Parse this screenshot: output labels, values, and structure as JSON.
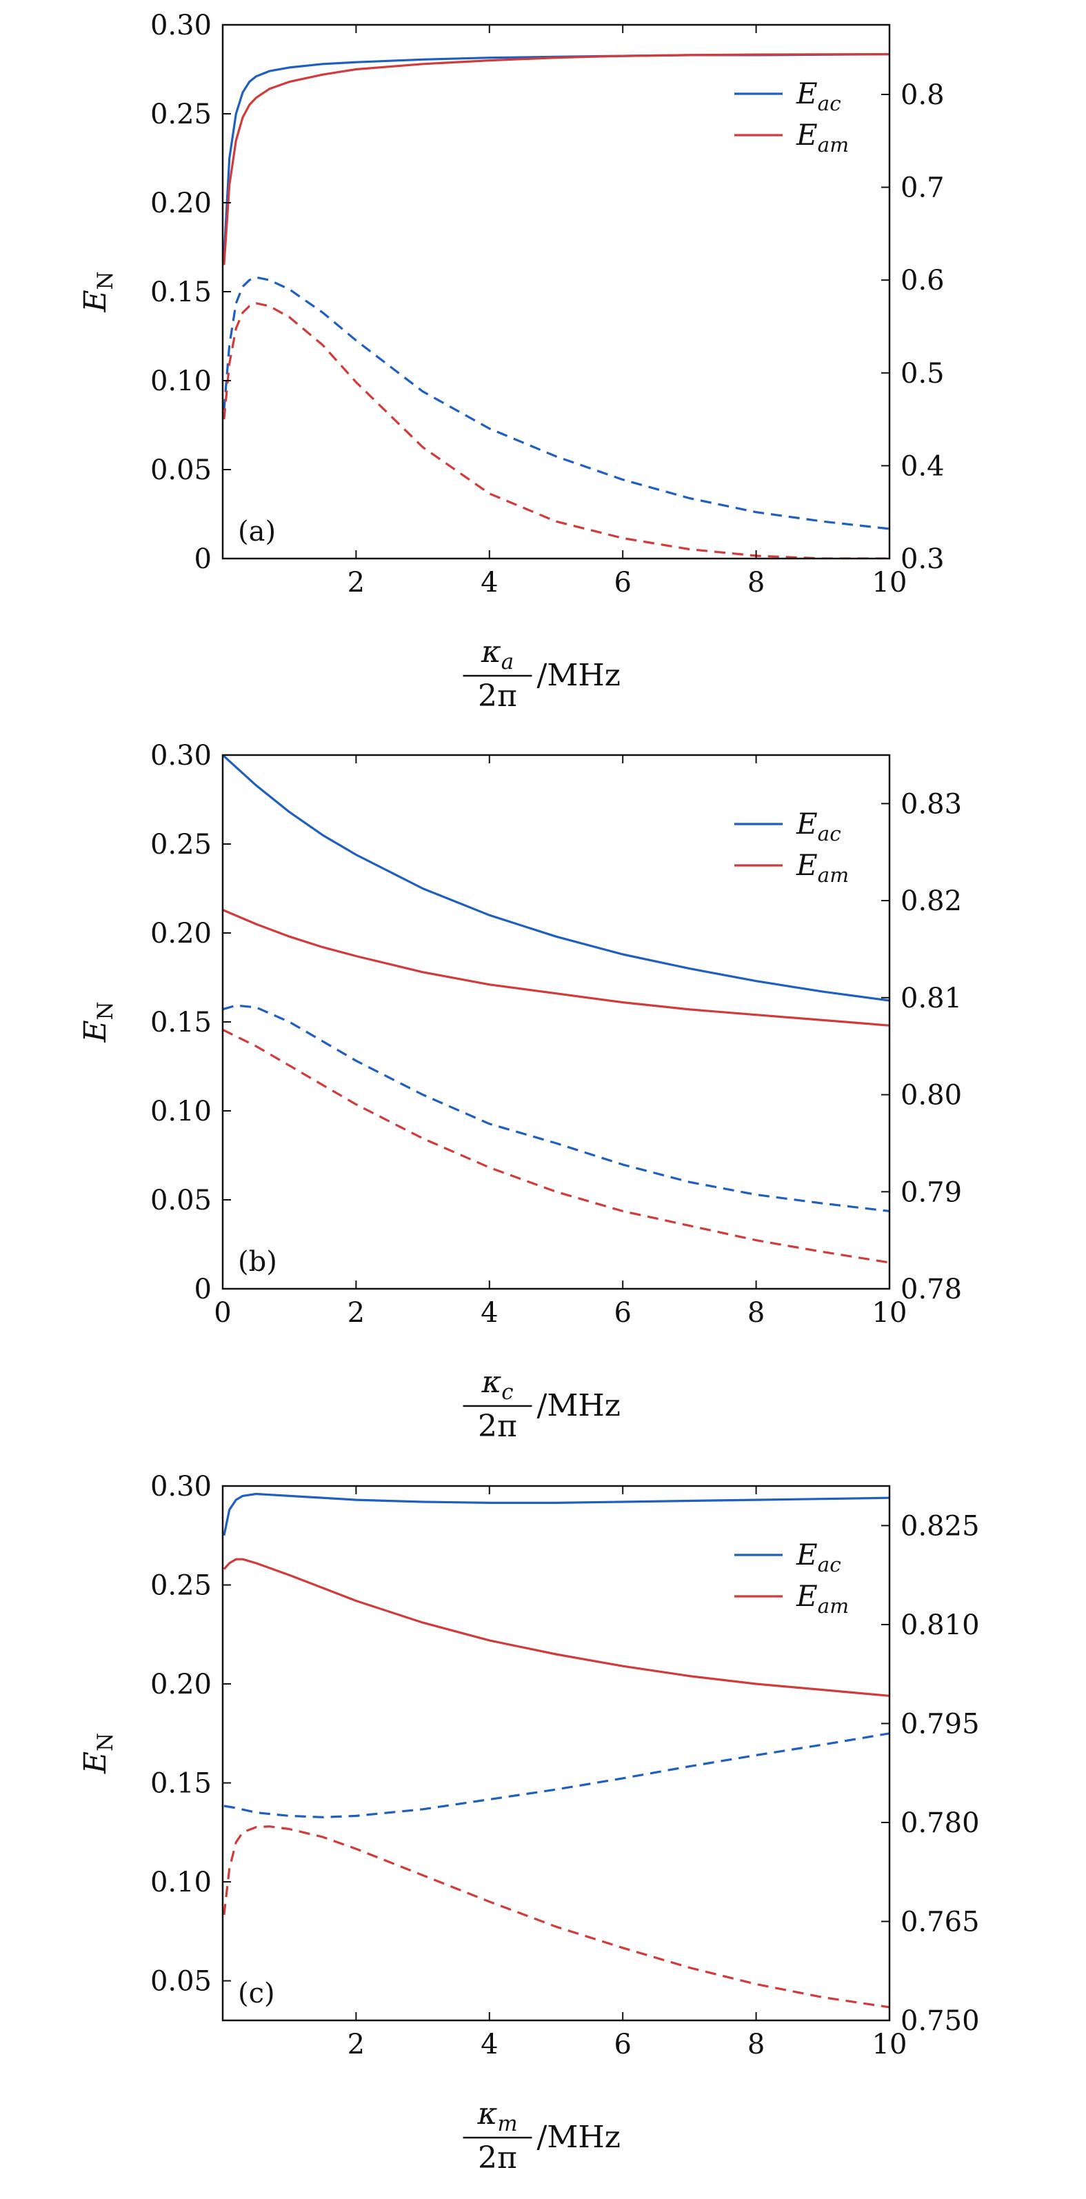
{
  "chart_data": [
    {
      "type": "line",
      "panel": "(a)",
      "xlabel": "κ_a / 2π /MHz",
      "xlabel_parts": {
        "symbol": "κ",
        "sub": "a",
        "den": "2π",
        "unit": "/MHz"
      },
      "ylabel_left": "E_N",
      "ylabel_parts": {
        "symbol": "E",
        "sub": "N"
      },
      "xlim": [
        0,
        10
      ],
      "xticks": [
        2,
        4,
        6,
        8,
        10
      ],
      "ylim_left": [
        0,
        0.3
      ],
      "yticks_left": [
        "0",
        "0.05",
        "0.10",
        "0.15",
        "0.20",
        "0.25",
        "0.30"
      ],
      "ylim_right": [
        0.3,
        0.875
      ],
      "yticks_right": [
        "0.3",
        "0.4",
        "0.5",
        "0.6",
        "0.7",
        "0.8"
      ],
      "legend": [
        {
          "symbol": "E",
          "sub": "ac",
          "color": "#1f5fbf"
        },
        {
          "symbol": "E",
          "sub": "am",
          "color": "#d13b3b"
        }
      ],
      "legend_position": "upper-right",
      "series": [
        {
          "name": "E_ac",
          "axis": "left",
          "style": "solid",
          "color": "#1f5fbf",
          "x": [
            0.02,
            0.1,
            0.2,
            0.3,
            0.4,
            0.5,
            0.7,
            1,
            1.5,
            2,
            3,
            4,
            5,
            6,
            7,
            8,
            9,
            10
          ],
          "y": [
            0.17,
            0.225,
            0.25,
            0.262,
            0.268,
            0.271,
            0.274,
            0.276,
            0.278,
            0.279,
            0.2805,
            0.2815,
            0.282,
            0.2825,
            0.283,
            0.283,
            0.2832,
            0.2835
          ]
        },
        {
          "name": "E_am",
          "axis": "left",
          "style": "solid",
          "color": "#d13b3b",
          "x": [
            0.02,
            0.1,
            0.2,
            0.3,
            0.4,
            0.5,
            0.7,
            1,
            1.5,
            2,
            3,
            4,
            5,
            6,
            7,
            8,
            9,
            10
          ],
          "y": [
            0.165,
            0.21,
            0.235,
            0.248,
            0.255,
            0.259,
            0.264,
            0.268,
            0.272,
            0.275,
            0.278,
            0.28,
            0.2815,
            0.2825,
            0.283,
            0.2833,
            0.2834,
            0.2835
          ]
        },
        {
          "name": "E_ac",
          "axis": "right",
          "style": "dashed",
          "color": "#1f5fbf",
          "x": [
            0.02,
            0.1,
            0.2,
            0.3,
            0.4,
            0.5,
            0.7,
            1,
            1.5,
            2,
            3,
            4,
            5,
            6,
            7,
            8,
            9,
            10
          ],
          "y": [
            0.46,
            0.53,
            0.575,
            0.593,
            0.6,
            0.603,
            0.6,
            0.59,
            0.565,
            0.535,
            0.48,
            0.44,
            0.41,
            0.385,
            0.365,
            0.35,
            0.34,
            0.332
          ]
        },
        {
          "name": "E_am",
          "axis": "right",
          "style": "dashed",
          "color": "#d13b3b",
          "x": [
            0.02,
            0.1,
            0.2,
            0.3,
            0.4,
            0.5,
            0.7,
            1,
            1.5,
            2,
            3,
            4,
            5,
            6,
            7,
            8,
            9,
            10
          ],
          "y": [
            0.45,
            0.51,
            0.548,
            0.565,
            0.572,
            0.575,
            0.572,
            0.56,
            0.53,
            0.49,
            0.42,
            0.37,
            0.34,
            0.322,
            0.31,
            0.303,
            0.3,
            0.3
          ]
        }
      ]
    },
    {
      "type": "line",
      "panel": "(b)",
      "xlabel": "κ_c / 2π /MHz",
      "xlabel_parts": {
        "symbol": "κ",
        "sub": "c",
        "den": "2π",
        "unit": "/MHz"
      },
      "ylabel_left": "E_N",
      "ylabel_parts": {
        "symbol": "E",
        "sub": "N"
      },
      "xlim": [
        0,
        10
      ],
      "xticks": [
        0,
        2,
        4,
        6,
        8,
        10
      ],
      "ylim_left": [
        0,
        0.3
      ],
      "yticks_left": [
        "0",
        "0.05",
        "0.10",
        "0.15",
        "0.20",
        "0.25",
        "0.30"
      ],
      "ylim_right": [
        0.78,
        0.835
      ],
      "yticks_right": [
        "0.78",
        "0.79",
        "0.80",
        "0.81",
        "0.82",
        "0.83"
      ],
      "legend": [
        {
          "symbol": "E",
          "sub": "ac",
          "color": "#1f5fbf"
        },
        {
          "symbol": "E",
          "sub": "am",
          "color": "#d13b3b"
        }
      ],
      "legend_position": "upper-right",
      "series": [
        {
          "name": "E_ac",
          "axis": "left",
          "style": "solid",
          "color": "#1f5fbf",
          "x": [
            0,
            0.5,
            1,
            1.5,
            2,
            3,
            4,
            5,
            6,
            7,
            8,
            9,
            10
          ],
          "y": [
            0.3,
            0.283,
            0.268,
            0.255,
            0.244,
            0.225,
            0.21,
            0.198,
            0.188,
            0.18,
            0.173,
            0.167,
            0.162
          ]
        },
        {
          "name": "E_am",
          "axis": "left",
          "style": "solid",
          "color": "#d13b3b",
          "x": [
            0,
            0.5,
            1,
            1.5,
            2,
            3,
            4,
            5,
            6,
            7,
            8,
            9,
            10
          ],
          "y": [
            0.213,
            0.205,
            0.198,
            0.192,
            0.187,
            0.178,
            0.171,
            0.166,
            0.161,
            0.157,
            0.154,
            0.151,
            0.148
          ]
        },
        {
          "name": "E_ac",
          "axis": "right",
          "style": "dashed",
          "color": "#1f5fbf",
          "x": [
            0,
            0.2,
            0.5,
            1,
            1.5,
            2,
            3,
            4,
            5,
            6,
            7,
            8,
            9,
            10
          ],
          "y": [
            0.8088,
            0.8092,
            0.809,
            0.8075,
            0.8055,
            0.8035,
            0.8,
            0.797,
            0.795,
            0.7928,
            0.791,
            0.7897,
            0.7888,
            0.788
          ]
        },
        {
          "name": "E_am",
          "axis": "right",
          "style": "dashed",
          "color": "#d13b3b",
          "x": [
            0,
            0.5,
            1,
            1.5,
            2,
            3,
            4,
            5,
            6,
            7,
            8,
            9,
            10
          ],
          "y": [
            0.8067,
            0.805,
            0.803,
            0.801,
            0.799,
            0.7955,
            0.7925,
            0.79,
            0.788,
            0.7865,
            0.785,
            0.7838,
            0.7827
          ]
        }
      ]
    },
    {
      "type": "line",
      "panel": "(c)",
      "xlabel": "κ_m / 2π /MHz",
      "xlabel_parts": {
        "symbol": "κ",
        "sub": "m",
        "den": "2π",
        "unit": "/MHz"
      },
      "ylabel_left": "E_N",
      "ylabel_parts": {
        "symbol": "E",
        "sub": "N"
      },
      "xlim": [
        0,
        10
      ],
      "xticks": [
        2,
        4,
        6,
        8,
        10
      ],
      "ylim_left": [
        0.03,
        0.3
      ],
      "yticks_left": [
        "0.05",
        "0.10",
        "0.15",
        "0.20",
        "0.25",
        "0.30"
      ],
      "ylim_right": [
        0.75,
        0.831
      ],
      "yticks_right": [
        "0.750",
        "0.765",
        "0.780",
        "0.795",
        "0.810",
        "0.825"
      ],
      "legend": [
        {
          "symbol": "E",
          "sub": "ac",
          "color": "#1f5fbf"
        },
        {
          "symbol": "E",
          "sub": "am",
          "color": "#d13b3b"
        }
      ],
      "legend_position": "upper-right",
      "series": [
        {
          "name": "E_ac",
          "axis": "left",
          "style": "solid",
          "color": "#1f5fbf",
          "x": [
            0.02,
            0.1,
            0.2,
            0.3,
            0.5,
            1,
            2,
            3,
            4,
            5,
            6,
            7,
            8,
            9,
            10
          ],
          "y": [
            0.275,
            0.288,
            0.293,
            0.295,
            0.296,
            0.295,
            0.293,
            0.292,
            0.2915,
            0.2915,
            0.292,
            0.2925,
            0.293,
            0.2935,
            0.294
          ]
        },
        {
          "name": "E_am",
          "axis": "left",
          "style": "solid",
          "color": "#d13b3b",
          "x": [
            0.02,
            0.1,
            0.2,
            0.3,
            0.5,
            1,
            2,
            3,
            4,
            5,
            6,
            7,
            8,
            9,
            10
          ],
          "y": [
            0.258,
            0.261,
            0.263,
            0.263,
            0.261,
            0.255,
            0.242,
            0.231,
            0.222,
            0.215,
            0.209,
            0.204,
            0.2,
            0.197,
            0.194
          ]
        },
        {
          "name": "E_ac",
          "axis": "right",
          "style": "dashed",
          "color": "#1f5fbf",
          "x": [
            0.02,
            0.2,
            0.5,
            1,
            1.5,
            2,
            3,
            4,
            5,
            6,
            7,
            8,
            9,
            10
          ],
          "y": [
            0.7825,
            0.7822,
            0.7815,
            0.781,
            0.7808,
            0.781,
            0.782,
            0.7835,
            0.785,
            0.7867,
            0.7885,
            0.7902,
            0.7918,
            0.7935
          ]
        },
        {
          "name": "E_am",
          "axis": "right",
          "style": "dashed",
          "color": "#d13b3b",
          "x": [
            0.02,
            0.1,
            0.2,
            0.3,
            0.5,
            0.7,
            1,
            1.5,
            2,
            3,
            4,
            5,
            6,
            7,
            8,
            9,
            10
          ],
          "y": [
            0.766,
            0.773,
            0.777,
            0.7785,
            0.7793,
            0.7794,
            0.779,
            0.7778,
            0.776,
            0.772,
            0.768,
            0.7642,
            0.761,
            0.758,
            0.7555,
            0.7535,
            0.752
          ]
        }
      ]
    }
  ]
}
